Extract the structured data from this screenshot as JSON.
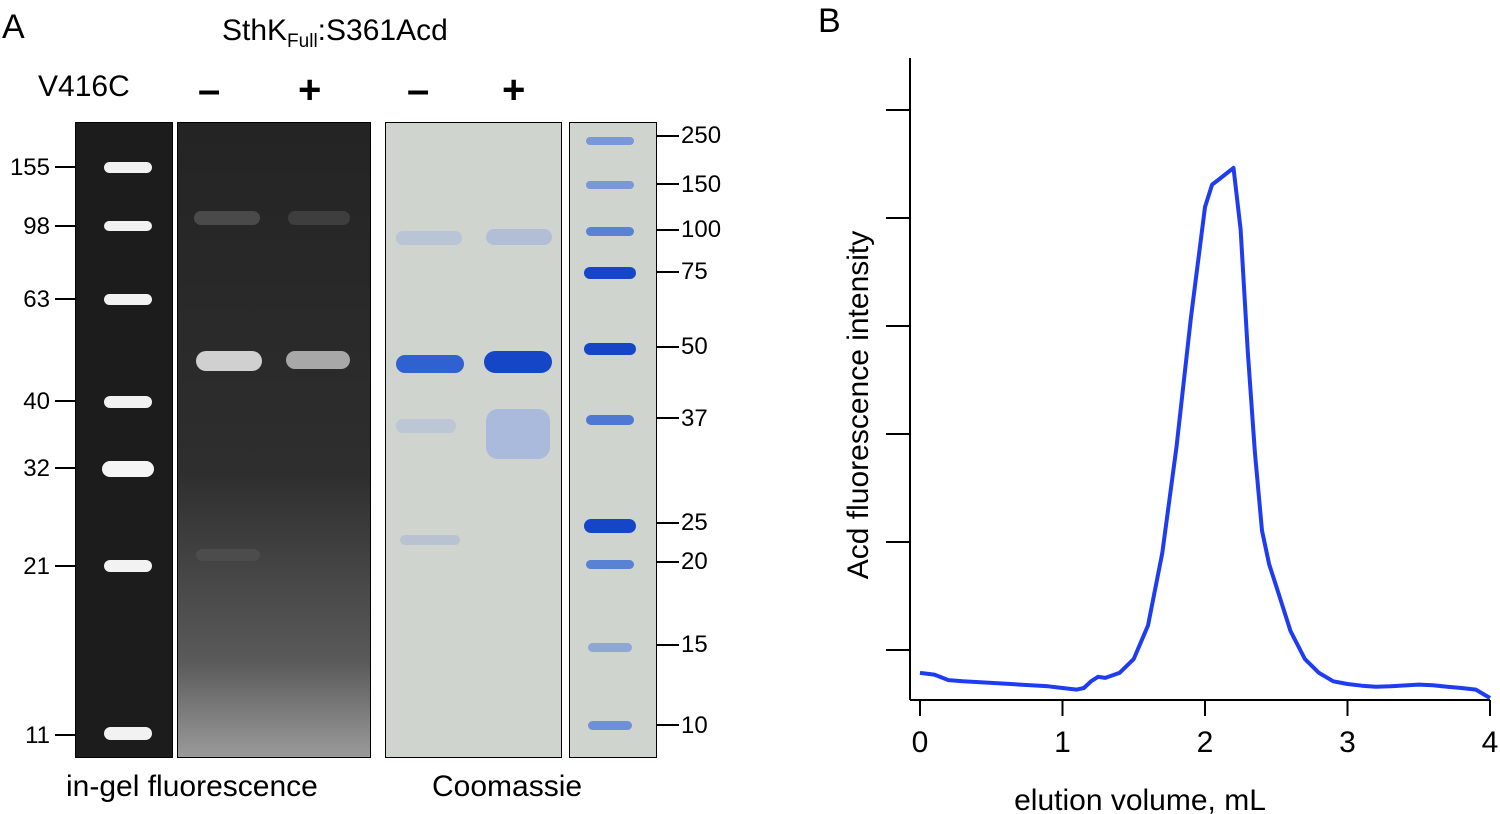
{
  "panel_a": {
    "letter": "A",
    "construct_prefix": "SthK",
    "construct_sub": "Full",
    "construct_suffix": ":S361Acd",
    "mutation_label": "V416C",
    "lanes": [
      "–",
      "+",
      "–",
      "+"
    ],
    "left_ladder_labels": [
      "155",
      "98",
      "63",
      "40",
      "32",
      "21",
      "11"
    ],
    "right_ladder_labels": [
      "250",
      "150",
      "100",
      "75",
      "50",
      "37",
      "25",
      "20",
      "15",
      "10"
    ],
    "captions": {
      "fluorescence": "in-gel fluorescence",
      "coomassie": "Coomassie"
    }
  },
  "panel_b": {
    "letter": "B"
  },
  "colors": {
    "trace": "#1f3df0",
    "coomassie_band": "#1646c8",
    "gel_dark": "#2a2a2a",
    "coomassie_bg": "#cfd4cf"
  },
  "chart_data": {
    "type": "line",
    "title": "",
    "xlabel": "elution volume, mL",
    "ylabel": "Acd fluorescence intensity",
    "xlim": [
      0,
      4
    ],
    "xticks": [
      "0",
      "1",
      "2",
      "3",
      "4"
    ],
    "ylim": [
      0,
      1
    ],
    "yticks_labeled": false,
    "series": [
      {
        "x": [
          0.0,
          0.1,
          0.2,
          0.3,
          0.5,
          0.7,
          0.9,
          1.0,
          1.1,
          1.15,
          1.2,
          1.25,
          1.3,
          1.4,
          1.5,
          1.6,
          1.7,
          1.8,
          1.9,
          2.0,
          2.05,
          2.1,
          2.15,
          2.2,
          2.25,
          2.3,
          2.35,
          2.4,
          2.45,
          2.5,
          2.55,
          2.6,
          2.7,
          2.8,
          2.9,
          3.0,
          3.1,
          3.2,
          3.3,
          3.5,
          3.6,
          3.7,
          3.8,
          3.9,
          4.0
        ],
        "y": [
          0.045,
          0.042,
          0.032,
          0.03,
          0.027,
          0.024,
          0.021,
          0.018,
          0.015,
          0.018,
          0.03,
          0.038,
          0.036,
          0.045,
          0.07,
          0.13,
          0.26,
          0.45,
          0.68,
          0.88,
          0.92,
          0.93,
          0.94,
          0.95,
          0.84,
          0.62,
          0.44,
          0.3,
          0.24,
          0.2,
          0.16,
          0.12,
          0.07,
          0.045,
          0.03,
          0.025,
          0.022,
          0.02,
          0.021,
          0.024,
          0.023,
          0.02,
          0.018,
          0.015,
          0.0
        ]
      }
    ]
  }
}
